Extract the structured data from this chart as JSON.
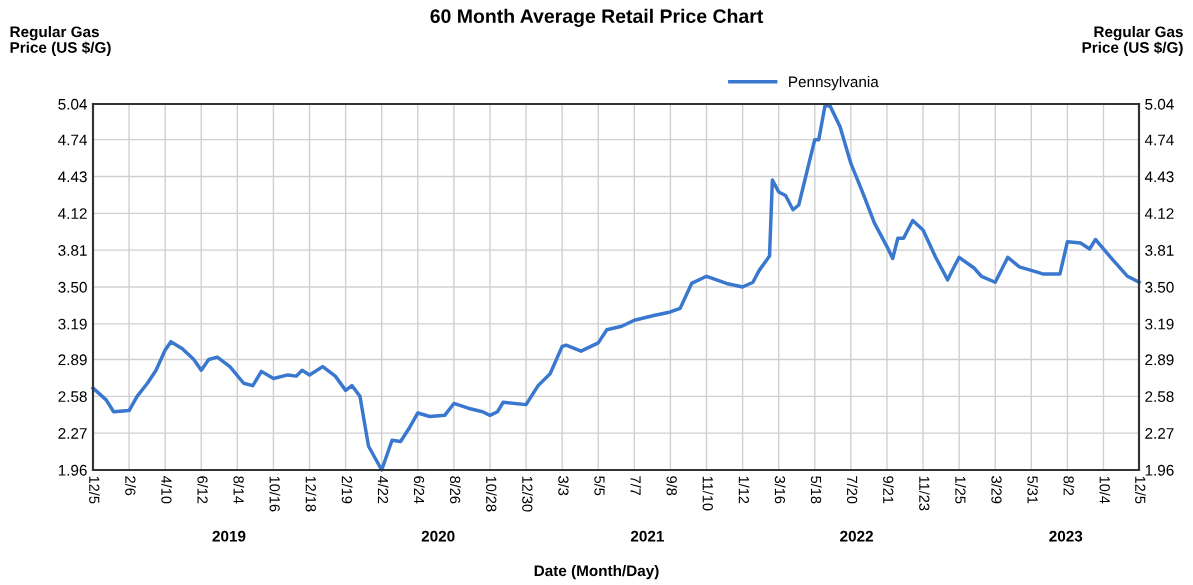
{
  "chart_data": {
    "type": "line",
    "title": "60 Month Average Retail Price Chart",
    "xlabel": "Date (Month/Day)",
    "ylabel": "Regular Gas\nPrice (US $/G)",
    "y2label": "Regular Gas\nPrice (US $/G)",
    "x": [
      "2018-12-05",
      "2018-12-28",
      "2019-01-10",
      "2019-02-06",
      "2019-02-20",
      "2019-03-10",
      "2019-03-25",
      "2019-04-10",
      "2019-04-20",
      "2019-05-10",
      "2019-05-30",
      "2019-06-12",
      "2019-06-25",
      "2019-07-10",
      "2019-08-01",
      "2019-08-25",
      "2019-09-10",
      "2019-09-25",
      "2019-10-16",
      "2019-11-10",
      "2019-11-25",
      "2019-12-05",
      "2019-12-18",
      "2020-01-10",
      "2020-02-01",
      "2020-02-19",
      "2020-03-01",
      "2020-03-15",
      "2020-03-30",
      "2020-04-22",
      "2020-05-10",
      "2020-05-25",
      "2020-06-10",
      "2020-06-24",
      "2020-07-15",
      "2020-08-10",
      "2020-08-26",
      "2020-09-20",
      "2020-10-15",
      "2020-10-28",
      "2020-11-10",
      "2020-11-20",
      "2020-12-30",
      "2021-01-20",
      "2021-02-10",
      "2021-03-03",
      "2021-03-10",
      "2021-04-05",
      "2021-05-05",
      "2021-05-20",
      "2021-06-15",
      "2021-07-07",
      "2021-08-10",
      "2021-09-08",
      "2021-09-25",
      "2021-10-15",
      "2021-11-10",
      "2021-12-15",
      "2022-01-12",
      "2022-01-30",
      "2022-02-10",
      "2022-02-28",
      "2022-03-05",
      "2022-03-16",
      "2022-03-28",
      "2022-04-10",
      "2022-04-20",
      "2022-05-18",
      "2022-05-25",
      "2022-06-05",
      "2022-06-14",
      "2022-07-01",
      "2022-07-20",
      "2022-08-10",
      "2022-08-30",
      "2022-09-21",
      "2022-10-01",
      "2022-10-10",
      "2022-10-20",
      "2022-11-05",
      "2022-11-23",
      "2022-12-15",
      "2023-01-05",
      "2023-01-12",
      "2023-01-25",
      "2023-02-20",
      "2023-03-05",
      "2023-03-29",
      "2023-04-20",
      "2023-05-10",
      "2023-05-31",
      "2023-06-20",
      "2023-07-20",
      "2023-08-02",
      "2023-08-25",
      "2023-09-10",
      "2023-09-20",
      "2023-10-04",
      "2023-10-20",
      "2023-11-15",
      "2023-12-05"
    ],
    "series": [
      {
        "name": "Pennsylvania",
        "color": "#3a78d0",
        "values": [
          2.65,
          2.55,
          2.45,
          2.46,
          2.58,
          2.69,
          2.8,
          2.97,
          3.04,
          2.98,
          2.89,
          2.8,
          2.89,
          2.91,
          2.83,
          2.69,
          2.67,
          2.79,
          2.73,
          2.76,
          2.75,
          2.8,
          2.76,
          2.83,
          2.75,
          2.63,
          2.67,
          2.58,
          2.16,
          1.96,
          2.21,
          2.2,
          2.32,
          2.44,
          2.41,
          2.42,
          2.52,
          2.48,
          2.45,
          2.42,
          2.45,
          2.53,
          2.51,
          2.67,
          2.77,
          3.0,
          3.01,
          2.96,
          3.03,
          3.14,
          3.17,
          3.22,
          3.26,
          3.29,
          3.32,
          3.53,
          3.59,
          3.53,
          3.5,
          3.54,
          3.64,
          3.76,
          4.4,
          4.3,
          4.27,
          4.15,
          4.19,
          4.74,
          4.74,
          5.03,
          5.02,
          4.85,
          4.54,
          4.29,
          4.04,
          3.84,
          3.74,
          3.91,
          3.91,
          4.06,
          3.98,
          3.75,
          3.56,
          3.63,
          3.75,
          3.66,
          3.59,
          3.54,
          3.75,
          3.67,
          3.64,
          3.61,
          3.61,
          3.88,
          3.87,
          3.82,
          3.9,
          3.82,
          3.73,
          3.59,
          3.54
        ]
      }
    ],
    "xlim": [
      "2018-12-05",
      "2023-12-05"
    ],
    "xticks": [
      {
        "value": "2018-12-05",
        "label": "12/5"
      },
      {
        "value": "2019-02-06",
        "label": "2/6"
      },
      {
        "value": "2019-04-10",
        "label": "4/10"
      },
      {
        "value": "2019-06-12",
        "label": "6/12"
      },
      {
        "value": "2019-08-14",
        "label": "8/14"
      },
      {
        "value": "2019-10-16",
        "label": "10/16"
      },
      {
        "value": "2019-12-18",
        "label": "12/18"
      },
      {
        "value": "2020-02-19",
        "label": "2/19"
      },
      {
        "value": "2020-04-22",
        "label": "4/22"
      },
      {
        "value": "2020-06-24",
        "label": "6/24"
      },
      {
        "value": "2020-08-26",
        "label": "8/26"
      },
      {
        "value": "2020-10-28",
        "label": "10/28"
      },
      {
        "value": "2020-12-30",
        "label": "12/30"
      },
      {
        "value": "2021-03-03",
        "label": "3/3"
      },
      {
        "value": "2021-05-05",
        "label": "5/5"
      },
      {
        "value": "2021-07-07",
        "label": "7/7"
      },
      {
        "value": "2021-09-08",
        "label": "9/8"
      },
      {
        "value": "2021-11-10",
        "label": "11/10"
      },
      {
        "value": "2022-01-12",
        "label": "1/12"
      },
      {
        "value": "2022-03-16",
        "label": "3/16"
      },
      {
        "value": "2022-05-18",
        "label": "5/18"
      },
      {
        "value": "2022-07-20",
        "label": "7/20"
      },
      {
        "value": "2022-09-21",
        "label": "9/21"
      },
      {
        "value": "2022-11-23",
        "label": "11/23"
      },
      {
        "value": "2023-01-25",
        "label": "1/25"
      },
      {
        "value": "2023-03-29",
        "label": "3/29"
      },
      {
        "value": "2023-05-31",
        "label": "5/31"
      },
      {
        "value": "2023-08-02",
        "label": "8/2"
      },
      {
        "value": "2023-10-04",
        "label": "10/4"
      },
      {
        "value": "2023-12-05",
        "label": "12/5"
      }
    ],
    "ylim": [
      1.96,
      5.04
    ],
    "yticks": [
      {
        "value": 1.96,
        "label": "1.96"
      },
      {
        "value": 2.27,
        "label": "2.27"
      },
      {
        "value": 2.58,
        "label": "2.58"
      },
      {
        "value": 2.89,
        "label": "2.89"
      },
      {
        "value": 3.19,
        "label": "3.19"
      },
      {
        "value": 3.5,
        "label": "3.50"
      },
      {
        "value": 3.81,
        "label": "3.81"
      },
      {
        "value": 4.12,
        "label": "4.12"
      },
      {
        "value": 4.43,
        "label": "4.43"
      },
      {
        "value": 4.74,
        "label": "4.74"
      },
      {
        "value": 5.04,
        "label": "5.04"
      }
    ],
    "y2lim": [
      1.96,
      5.04
    ],
    "y2ticks": [
      {
        "value": 1.96,
        "label": "1.96"
      },
      {
        "value": 2.27,
        "label": "2.27"
      },
      {
        "value": 2.58,
        "label": "2.58"
      },
      {
        "value": 2.89,
        "label": "2.89"
      },
      {
        "value": 3.19,
        "label": "3.19"
      },
      {
        "value": 3.5,
        "label": "3.50"
      },
      {
        "value": 3.81,
        "label": "3.81"
      },
      {
        "value": 4.12,
        "label": "4.12"
      },
      {
        "value": 4.43,
        "label": "4.43"
      },
      {
        "value": 4.74,
        "label": "4.74"
      },
      {
        "value": 5.04,
        "label": "5.04"
      }
    ],
    "annotations": [
      "2019",
      "2020",
      "2021",
      "2022",
      "2023"
    ],
    "grid": true,
    "legend": "top",
    "marker": "none",
    "line_style": "solid"
  }
}
